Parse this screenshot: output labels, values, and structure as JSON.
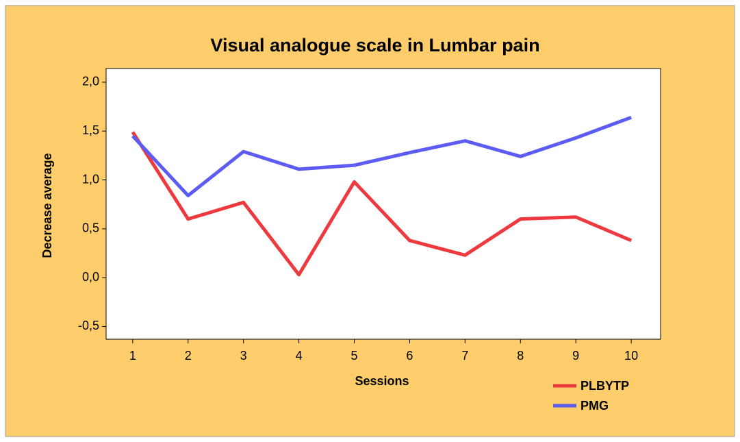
{
  "chart_data": {
    "type": "line",
    "title": "Visual analogue scale in Lumbar pain",
    "x_label": "Sessions",
    "y_label": "Decrease average",
    "x": [
      1,
      2,
      3,
      4,
      5,
      6,
      7,
      8,
      9,
      10
    ],
    "series": [
      {
        "name": "PLBYTP",
        "color": "#ee3a3f",
        "values": [
          1.49,
          0.6,
          0.77,
          0.03,
          0.98,
          0.38,
          0.23,
          0.6,
          0.62,
          0.38
        ]
      },
      {
        "name": "PMG",
        "color": "#5c5cf2",
        "values": [
          1.45,
          0.84,
          1.29,
          1.11,
          1.15,
          1.28,
          1.4,
          1.24,
          1.43,
          1.64
        ]
      }
    ],
    "xlim": [
      0.52,
      10.53
    ],
    "xticks": [
      1,
      2,
      3,
      4,
      5,
      6,
      7,
      8,
      9,
      10
    ],
    "ylim": [
      -0.63,
      2.14
    ],
    "yticks": [
      {
        "value": -0.5,
        "label": "-0,5"
      },
      {
        "value": 0,
        "label": "0,0"
      },
      {
        "value": 0.5,
        "label": "0,5"
      },
      {
        "value": 1,
        "label": "1,0"
      },
      {
        "value": 1.5,
        "label": "1,5"
      },
      {
        "value": 2,
        "label": "2,0"
      }
    ],
    "grid": false,
    "legend": "lower right"
  }
}
